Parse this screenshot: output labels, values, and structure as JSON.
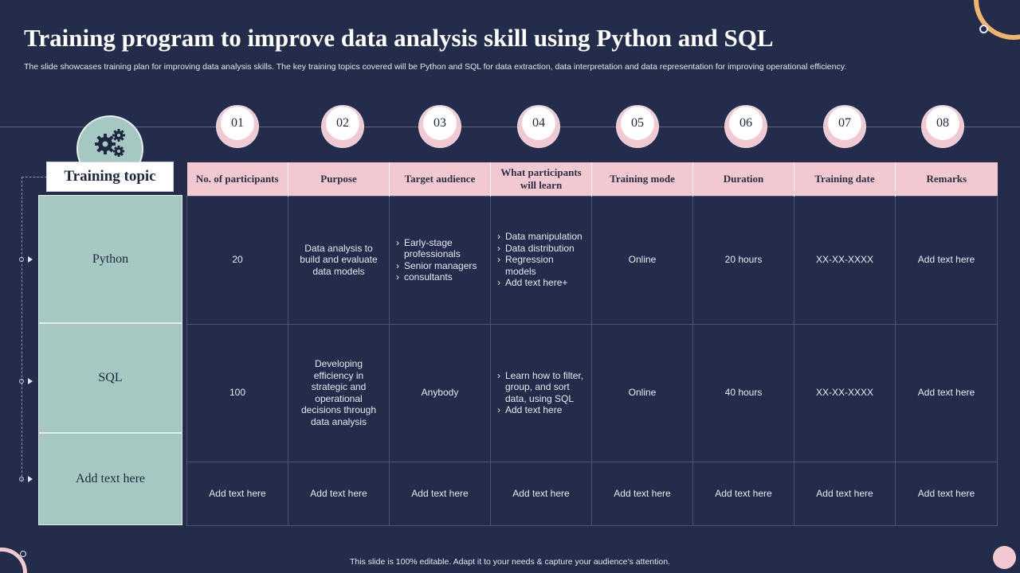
{
  "header": {
    "title": "Training program to improve data analysis skill using Python and SQL",
    "subtitle": "The slide showcases training plan for improving data analysis skills. The key training topics covered will be Python and SQL  for data extraction, data interpretation and data representation for improving operational efficiency."
  },
  "steps": [
    "01",
    "02",
    "03",
    "04",
    "05",
    "06",
    "07",
    "08"
  ],
  "training_topic_label": "Training topic",
  "topics": [
    "Python",
    "SQL",
    "Add text here"
  ],
  "columns": [
    "No. of participants",
    "Purpose",
    "Target audience",
    "What participants will learn",
    "Training mode",
    "Duration",
    "Training date",
    "Remarks"
  ],
  "rows": [
    {
      "participants": "20",
      "purpose": "Data analysis to build and evaluate data models",
      "audience": [
        "Early-stage professionals",
        "Senior managers",
        "consultants"
      ],
      "learn": [
        "Data manipulation",
        "Data distribution",
        "Regression models",
        "Add text here+"
      ],
      "mode": "Online",
      "duration": "20 hours",
      "date": "XX-XX-XXXX",
      "remarks": "Add text here"
    },
    {
      "participants": "100",
      "purpose": "Developing efficiency in strategic and operational decisions through data analysis",
      "audience_text": "Anybody",
      "learn": [
        "Learn how to filter, group, and sort data, using SQL",
        "Add text here"
      ],
      "mode": "Online",
      "duration": "40 hours",
      "date": "XX-XX-XXXX",
      "remarks": "Add text here"
    },
    {
      "participants": "Add text here",
      "purpose": "Add text here",
      "audience_text": "Add text here",
      "learn_text": "Add text here",
      "mode": "Add text here",
      "duration": "Add text here",
      "date": "Add text here",
      "remarks": "Add text here"
    }
  ],
  "footer": "This slide is 100% editable.  Adapt it to your needs & capture your audience’s attention.",
  "colors": {
    "background": "#232c4b",
    "header_pink": "#f3c9d1",
    "topic_teal": "#a6c8c2",
    "accent_orange": "#f0b46a"
  },
  "icons": {
    "topic": "gears-icon"
  }
}
